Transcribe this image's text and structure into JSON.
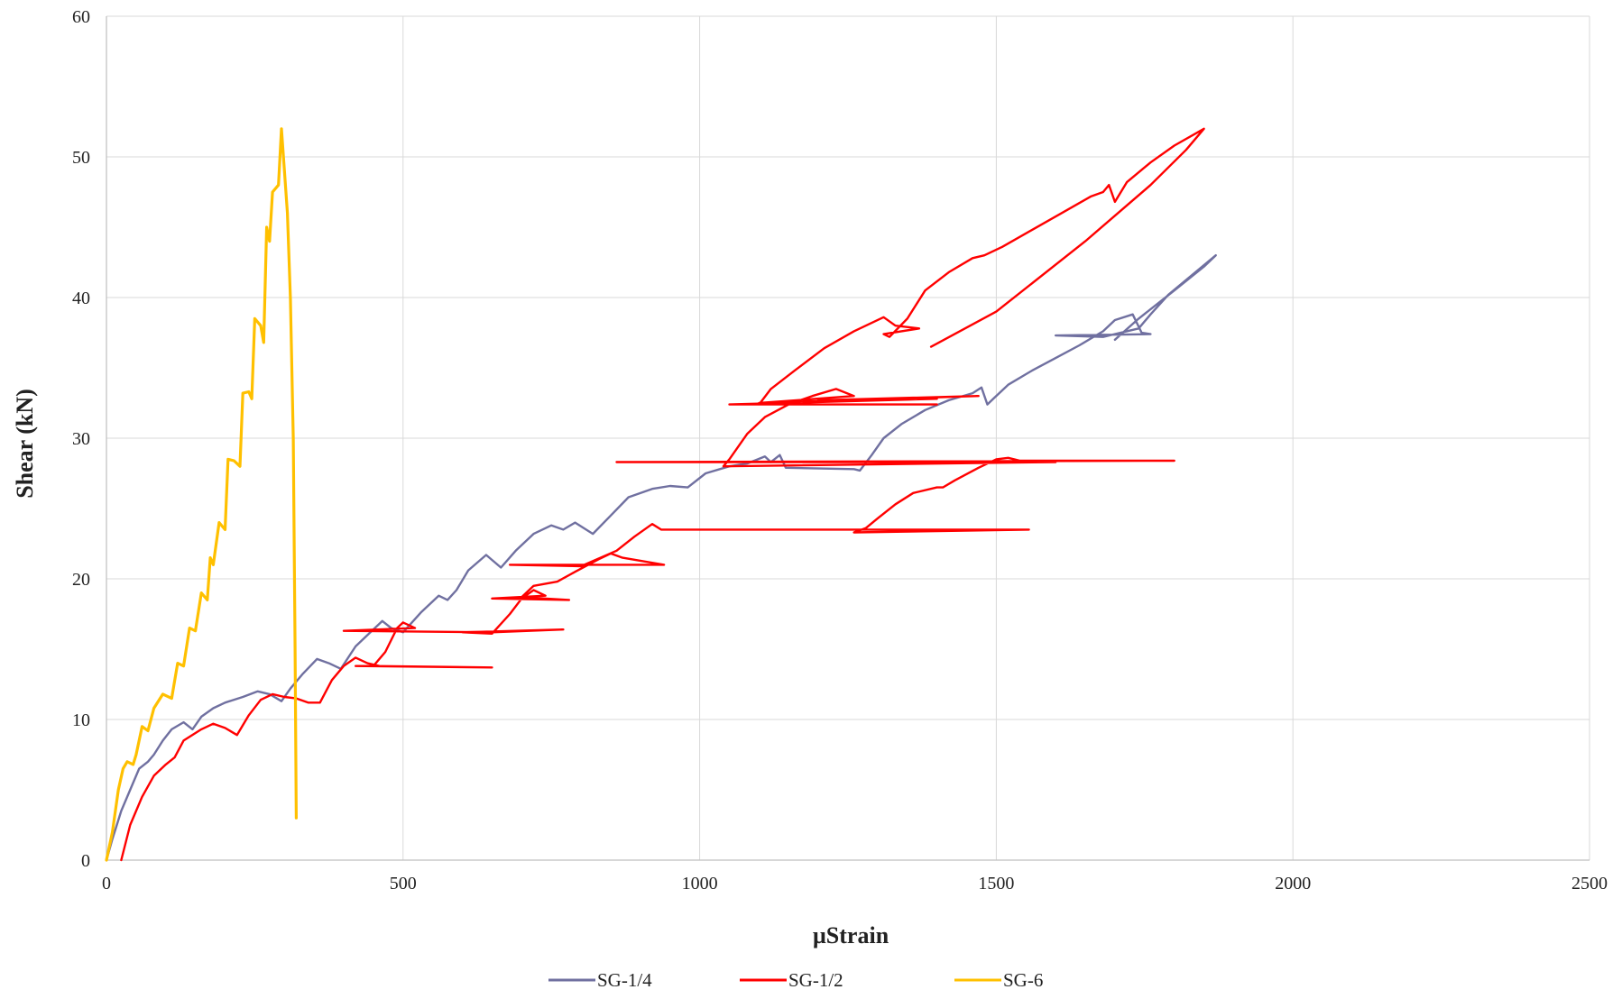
{
  "chart_data": {
    "type": "line",
    "title": "",
    "xlabel": "µStrain",
    "ylabel": "Shear (kN)",
    "xlim": [
      0,
      2500
    ],
    "ylim": [
      0,
      60
    ],
    "x_ticks": [
      0,
      500,
      1000,
      1500,
      2000,
      2500
    ],
    "y_ticks": [
      0,
      10,
      20,
      30,
      40,
      50,
      60
    ],
    "grid": true,
    "legend_position": "bottom",
    "series": [
      {
        "name": "SG-1/4",
        "color": "#7070a0",
        "points": [
          [
            0,
            0
          ],
          [
            10,
            1.5
          ],
          [
            25,
            3.5
          ],
          [
            40,
            5
          ],
          [
            55,
            6.5
          ],
          [
            70,
            7
          ],
          [
            80,
            7.5
          ],
          [
            95,
            8.5
          ],
          [
            110,
            9.3
          ],
          [
            130,
            9.8
          ],
          [
            145,
            9.3
          ],
          [
            160,
            10.2
          ],
          [
            180,
            10.8
          ],
          [
            200,
            11.2
          ],
          [
            230,
            11.6
          ],
          [
            255,
            12
          ],
          [
            275,
            11.8
          ],
          [
            295,
            11.3
          ],
          [
            310,
            12.2
          ],
          [
            330,
            13.2
          ],
          [
            355,
            14.3
          ],
          [
            375,
            14
          ],
          [
            395,
            13.6
          ],
          [
            420,
            15.2
          ],
          [
            445,
            16.2
          ],
          [
            465,
            17
          ],
          [
            480,
            16.5
          ],
          [
            500,
            16.2
          ],
          [
            530,
            17.6
          ],
          [
            560,
            18.8
          ],
          [
            575,
            18.5
          ],
          [
            590,
            19.2
          ],
          [
            610,
            20.6
          ],
          [
            640,
            21.7
          ],
          [
            665,
            20.8
          ],
          [
            690,
            22
          ],
          [
            720,
            23.2
          ],
          [
            750,
            23.8
          ],
          [
            770,
            23.5
          ],
          [
            790,
            24
          ],
          [
            820,
            23.2
          ],
          [
            850,
            24.5
          ],
          [
            880,
            25.8
          ],
          [
            920,
            26.4
          ],
          [
            950,
            26.6
          ],
          [
            980,
            26.5
          ],
          [
            1010,
            27.5
          ],
          [
            1050,
            28
          ],
          [
            1080,
            28.2
          ],
          [
            1110,
            28.7
          ],
          [
            1120,
            28.3
          ],
          [
            1135,
            28.8
          ],
          [
            1145,
            27.9
          ],
          [
            1260,
            27.8
          ],
          [
            1270,
            27.7
          ],
          [
            1290,
            28.8
          ],
          [
            1310,
            30
          ],
          [
            1340,
            31
          ],
          [
            1380,
            32
          ],
          [
            1420,
            32.7
          ],
          [
            1460,
            33.2
          ],
          [
            1475,
            33.6
          ],
          [
            1485,
            32.4
          ],
          [
            1495,
            32.8
          ],
          [
            1520,
            33.8
          ],
          [
            1560,
            34.8
          ],
          [
            1600,
            35.7
          ],
          [
            1640,
            36.6
          ],
          [
            1680,
            37.6
          ],
          [
            1700,
            38.4
          ],
          [
            1730,
            38.8
          ],
          [
            1745,
            37.5
          ],
          [
            1760,
            37.4
          ],
          [
            1600,
            37.3
          ],
          [
            1680,
            37.2
          ],
          [
            1740,
            37.8
          ],
          [
            1760,
            38.8
          ],
          [
            1790,
            40.2
          ],
          [
            1830,
            41.6
          ],
          [
            1870,
            43
          ],
          [
            1850,
            42.2
          ],
          [
            1800,
            40.5
          ],
          [
            1740,
            38.5
          ],
          [
            1700,
            37
          ]
        ]
      },
      {
        "name": "SG-1/2",
        "color": "#ff0000",
        "points": [
          [
            25,
            0
          ],
          [
            40,
            2.5
          ],
          [
            60,
            4.5
          ],
          [
            80,
            6
          ],
          [
            100,
            6.8
          ],
          [
            115,
            7.3
          ],
          [
            130,
            8.5
          ],
          [
            160,
            9.3
          ],
          [
            180,
            9.7
          ],
          [
            200,
            9.4
          ],
          [
            220,
            8.9
          ],
          [
            240,
            10.3
          ],
          [
            260,
            11.4
          ],
          [
            280,
            11.8
          ],
          [
            300,
            11.6
          ],
          [
            320,
            11.5
          ],
          [
            340,
            11.2
          ],
          [
            360,
            11.2
          ],
          [
            380,
            12.8
          ],
          [
            400,
            13.8
          ],
          [
            420,
            14.4
          ],
          [
            440,
            14
          ],
          [
            460,
            13.8
          ],
          [
            420,
            13.8
          ],
          [
            650,
            13.7
          ],
          [
            450,
            13.8
          ],
          [
            470,
            14.8
          ],
          [
            490,
            16.5
          ],
          [
            500,
            16.9
          ],
          [
            520,
            16.5
          ],
          [
            400,
            16.3
          ],
          [
            650,
            16.2
          ],
          [
            770,
            16.4
          ],
          [
            600,
            16.2
          ],
          [
            650,
            16.1
          ],
          [
            680,
            17.5
          ],
          [
            700,
            18.6
          ],
          [
            720,
            19.2
          ],
          [
            740,
            18.8
          ],
          [
            650,
            18.6
          ],
          [
            780,
            18.5
          ],
          [
            700,
            18.7
          ],
          [
            720,
            19.5
          ],
          [
            760,
            19.8
          ],
          [
            790,
            20.5
          ],
          [
            830,
            21.4
          ],
          [
            850,
            21.8
          ],
          [
            870,
            21.5
          ],
          [
            940,
            21
          ],
          [
            680,
            21
          ],
          [
            800,
            20.9
          ],
          [
            860,
            22
          ],
          [
            890,
            23
          ],
          [
            920,
            23.9
          ],
          [
            935,
            23.5
          ],
          [
            1000,
            23.5
          ],
          [
            1555,
            23.5
          ],
          [
            1260,
            23.3
          ],
          [
            1280,
            23.6
          ],
          [
            1300,
            24.3
          ],
          [
            1330,
            25.3
          ],
          [
            1360,
            26.1
          ],
          [
            1400,
            26.5
          ],
          [
            1410,
            26.5
          ],
          [
            1430,
            27
          ],
          [
            1470,
            27.9
          ],
          [
            1500,
            28.5
          ],
          [
            1520,
            28.6
          ],
          [
            1540,
            28.4
          ],
          [
            1800,
            28.4
          ],
          [
            860,
            28.3
          ],
          [
            1600,
            28.3
          ],
          [
            1040,
            28
          ],
          [
            1050,
            28.5
          ],
          [
            1080,
            30.3
          ],
          [
            1110,
            31.5
          ],
          [
            1150,
            32.4
          ],
          [
            1190,
            33
          ],
          [
            1230,
            33.5
          ],
          [
            1260,
            33
          ],
          [
            1100,
            32.5
          ],
          [
            1470,
            33
          ],
          [
            1200,
            32.7
          ],
          [
            1400,
            32.8
          ],
          [
            1050,
            32.4
          ],
          [
            1400,
            32.4
          ],
          [
            1100,
            32.4
          ],
          [
            1120,
            33.5
          ],
          [
            1160,
            34.8
          ],
          [
            1210,
            36.4
          ],
          [
            1260,
            37.6
          ],
          [
            1310,
            38.6
          ],
          [
            1330,
            38
          ],
          [
            1370,
            37.8
          ],
          [
            1310,
            37.4
          ],
          [
            1320,
            37.2
          ],
          [
            1350,
            38.5
          ],
          [
            1380,
            40.5
          ],
          [
            1420,
            41.8
          ],
          [
            1460,
            42.8
          ],
          [
            1480,
            43
          ],
          [
            1510,
            43.6
          ],
          [
            1560,
            44.8
          ],
          [
            1610,
            46
          ],
          [
            1660,
            47.2
          ],
          [
            1680,
            47.5
          ],
          [
            1690,
            48
          ],
          [
            1700,
            46.8
          ],
          [
            1720,
            48.2
          ],
          [
            1760,
            49.6
          ],
          [
            1800,
            50.8
          ],
          [
            1850,
            52
          ],
          [
            1820,
            50.5
          ],
          [
            1760,
            48
          ],
          [
            1650,
            44
          ],
          [
            1500,
            39
          ],
          [
            1390,
            36.5
          ]
        ]
      },
      {
        "name": "SG-6",
        "color": "#ffc000",
        "points": [
          [
            0,
            0
          ],
          [
            10,
            2
          ],
          [
            20,
            5
          ],
          [
            28,
            6.5
          ],
          [
            35,
            7
          ],
          [
            45,
            6.8
          ],
          [
            50,
            7.5
          ],
          [
            60,
            9.5
          ],
          [
            70,
            9.2
          ],
          [
            80,
            10.8
          ],
          [
            95,
            11.8
          ],
          [
            110,
            11.5
          ],
          [
            120,
            14
          ],
          [
            130,
            13.8
          ],
          [
            140,
            16.5
          ],
          [
            150,
            16.3
          ],
          [
            160,
            19
          ],
          [
            170,
            18.5
          ],
          [
            175,
            21.5
          ],
          [
            180,
            21
          ],
          [
            190,
            24
          ],
          [
            200,
            23.5
          ],
          [
            205,
            28.5
          ],
          [
            215,
            28.4
          ],
          [
            225,
            28
          ],
          [
            230,
            33.2
          ],
          [
            240,
            33.3
          ],
          [
            245,
            32.8
          ],
          [
            250,
            38.5
          ],
          [
            260,
            38
          ],
          [
            265,
            36.8
          ],
          [
            270,
            45
          ],
          [
            275,
            44
          ],
          [
            280,
            47.5
          ],
          [
            290,
            48
          ],
          [
            295,
            52
          ],
          [
            300,
            49
          ],
          [
            305,
            46
          ],
          [
            310,
            40
          ],
          [
            315,
            30
          ],
          [
            318,
            15
          ],
          [
            320,
            3
          ]
        ]
      }
    ]
  }
}
